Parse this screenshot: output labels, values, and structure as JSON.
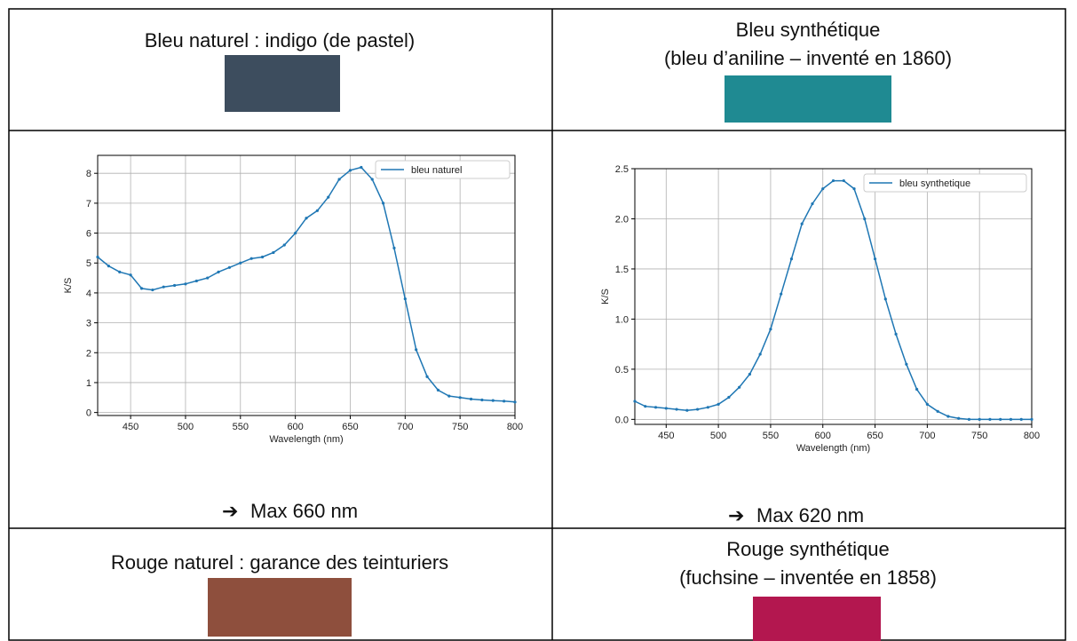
{
  "table": {
    "rows": [
      [
        {
          "lines": [
            "Bleu naturel : indigo (de pastel)"
          ]
        },
        {
          "lines": [
            "Bleu synthétique",
            "(bleu d’aniline – inventé en 1860)"
          ]
        }
      ],
      [
        {
          "chart": {
            "type": "line",
            "xlabel": "Wavelength (nm)",
            "ylabel": "K/S",
            "x": [
              420,
              430,
              440,
              450,
              460,
              470,
              480,
              490,
              500,
              510,
              520,
              530,
              540,
              550,
              560,
              570,
              580,
              590,
              600,
              610,
              620,
              630,
              640,
              650,
              660,
              670,
              680,
              690,
              700,
              710,
              720,
              730,
              740,
              750,
              760,
              770,
              780,
              790,
              800
            ],
            "series": [
              {
                "name": "bleu naturel",
                "color": "#1f77b4",
                "values": [
                  5.2,
                  4.9,
                  4.7,
                  4.6,
                  4.15,
                  4.1,
                  4.2,
                  4.25,
                  4.3,
                  4.4,
                  4.5,
                  4.7,
                  4.85,
                  5.0,
                  5.15,
                  5.2,
                  5.35,
                  5.6,
                  6.0,
                  6.5,
                  6.75,
                  7.2,
                  7.8,
                  8.1,
                  8.2,
                  7.8,
                  7.0,
                  5.5,
                  3.8,
                  2.1,
                  1.2,
                  0.75,
                  0.55,
                  0.5,
                  0.45,
                  0.42,
                  0.4,
                  0.38,
                  0.35
                ]
              }
            ],
            "xlim": [
              420,
              800
            ],
            "xticks": [
              450,
              500,
              550,
              600,
              650,
              700,
              750,
              800
            ],
            "ylim": [
              -0.1,
              8.6
            ],
            "yticks": [
              0,
              1,
              2,
              3,
              4,
              5,
              6,
              7,
              8
            ],
            "grid": true,
            "legend": "upper-right"
          },
          "arrow": "➔",
          "caption": "Max 660 nm"
        },
        {
          "chart": {
            "type": "line",
            "xlabel": "Wavelength (nm)",
            "ylabel": "K/S",
            "x": [
              420,
              430,
              440,
              450,
              460,
              470,
              480,
              490,
              500,
              510,
              520,
              530,
              540,
              550,
              560,
              570,
              580,
              590,
              600,
              610,
              620,
              630,
              640,
              650,
              660,
              670,
              680,
              690,
              700,
              710,
              720,
              730,
              740,
              750,
              760,
              770,
              780,
              790,
              800
            ],
            "series": [
              {
                "name": "bleu synthetique",
                "color": "#1f77b4",
                "values": [
                  0.18,
                  0.13,
                  0.12,
                  0.11,
                  0.1,
                  0.09,
                  0.1,
                  0.12,
                  0.15,
                  0.22,
                  0.32,
                  0.45,
                  0.65,
                  0.9,
                  1.25,
                  1.6,
                  1.95,
                  2.15,
                  2.3,
                  2.38,
                  2.38,
                  2.3,
                  2.0,
                  1.6,
                  1.2,
                  0.85,
                  0.55,
                  0.3,
                  0.15,
                  0.08,
                  0.03,
                  0.01,
                  0,
                  0,
                  0,
                  0,
                  0,
                  0,
                  0
                ]
              }
            ],
            "xlim": [
              420,
              800
            ],
            "xticks": [
              450,
              500,
              550,
              600,
              650,
              700,
              750,
              800
            ],
            "ylim": [
              -0.05,
              2.5
            ],
            "yticks": [
              {
                "value": 0,
                "label": "0.0"
              },
              0.5,
              {
                "value": 1,
                "label": "1.0"
              },
              1.5,
              {
                "value": 2,
                "label": "2.0"
              },
              2.5
            ],
            "grid": true,
            "legend": "upper-right"
          },
          "arrow": "➔",
          "caption": "Max 620 nm"
        }
      ],
      [
        {
          "lines": [
            "Rouge naturel : garance des teinturiers"
          ]
        },
        {
          "lines": [
            "Rouge synthétique",
            "(fuchsine – inventée en 1858)"
          ]
        }
      ]
    ]
  }
}
